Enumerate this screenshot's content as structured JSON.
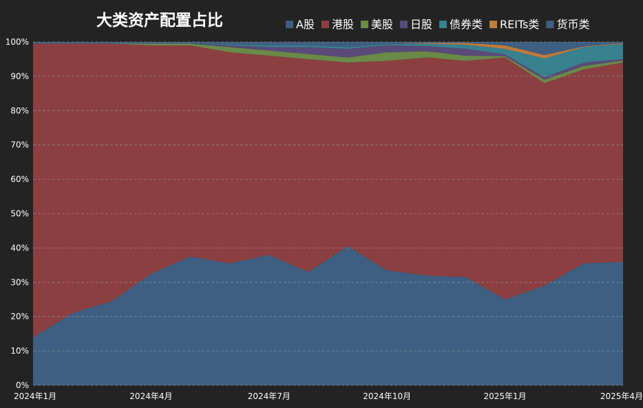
{
  "chart_data": {
    "type": "area",
    "stacked": true,
    "normalized": true,
    "title": "大类资产配置占比",
    "x": [
      "2024年1月",
      "",
      "",
      "2024年4月",
      "",
      "",
      "2024年7月",
      "",
      "",
      "2024年10月",
      "",
      "",
      "2025年1月",
      "",
      "",
      "2025年4月"
    ],
    "x_tick_labels": [
      "2024年1月",
      "2024年4月",
      "2024年7月",
      "2024年10月",
      "2025年1月",
      "2025年4月"
    ],
    "ylim": [
      0,
      100
    ],
    "y_tick_labels": [
      "0%",
      "10%",
      "20%",
      "30%",
      "40%",
      "50%",
      "60%",
      "70%",
      "80%",
      "90%",
      "100%"
    ],
    "grid": true,
    "legend_position": "top",
    "series": [
      {
        "name": "A股",
        "color": "#3f5f82",
        "values": [
          14,
          21,
          24.5,
          32.5,
          37.5,
          35.5,
          38,
          33,
          40.5,
          33.5,
          32,
          31.5,
          25,
          29,
          35.5,
          36
        ]
      },
      {
        "name": "港股",
        "color": "#8b3f40",
        "values": [
          85.5,
          78.5,
          75,
          66.5,
          61.5,
          61.5,
          58,
          62,
          53.5,
          61,
          63.5,
          63,
          70.5,
          59,
          56.5,
          58
        ]
      },
      {
        "name": "美股",
        "color": "#6a8a48",
        "values": [
          0,
          0,
          0,
          0.5,
          0.5,
          1.5,
          1.5,
          1.5,
          1.5,
          2.5,
          1.8,
          1.5,
          0.4,
          1,
          1,
          0.6
        ]
      },
      {
        "name": "日股",
        "color": "#5a4a7a",
        "values": [
          0,
          0,
          0,
          0,
          0,
          0.5,
          1.0,
          2.0,
          2.5,
          2.0,
          1.5,
          2.0,
          0.5,
          0.7,
          1.0,
          0.4
        ]
      },
      {
        "name": "债券类",
        "color": "#38818f",
        "values": [
          0,
          0,
          0,
          0,
          0,
          0.3,
          0.5,
          0.5,
          0.5,
          0.3,
          0.7,
          1.2,
          1.6,
          5.5,
          4.5,
          4.5
        ]
      },
      {
        "name": "REITs类",
        "color": "#c17a3c",
        "values": [
          0,
          0,
          0,
          0,
          0,
          0,
          0,
          0,
          0,
          0,
          0.2,
          0.5,
          1.0,
          1.0,
          0.2,
          0.2
        ]
      },
      {
        "name": "货币类",
        "color": "#3f5f82",
        "values": [
          0.5,
          0.5,
          0.5,
          0.5,
          0.5,
          0.7,
          1.0,
          1.0,
          1.5,
          0.7,
          0.3,
          0.3,
          1.0,
          3.8,
          1.3,
          0.3
        ]
      }
    ]
  }
}
